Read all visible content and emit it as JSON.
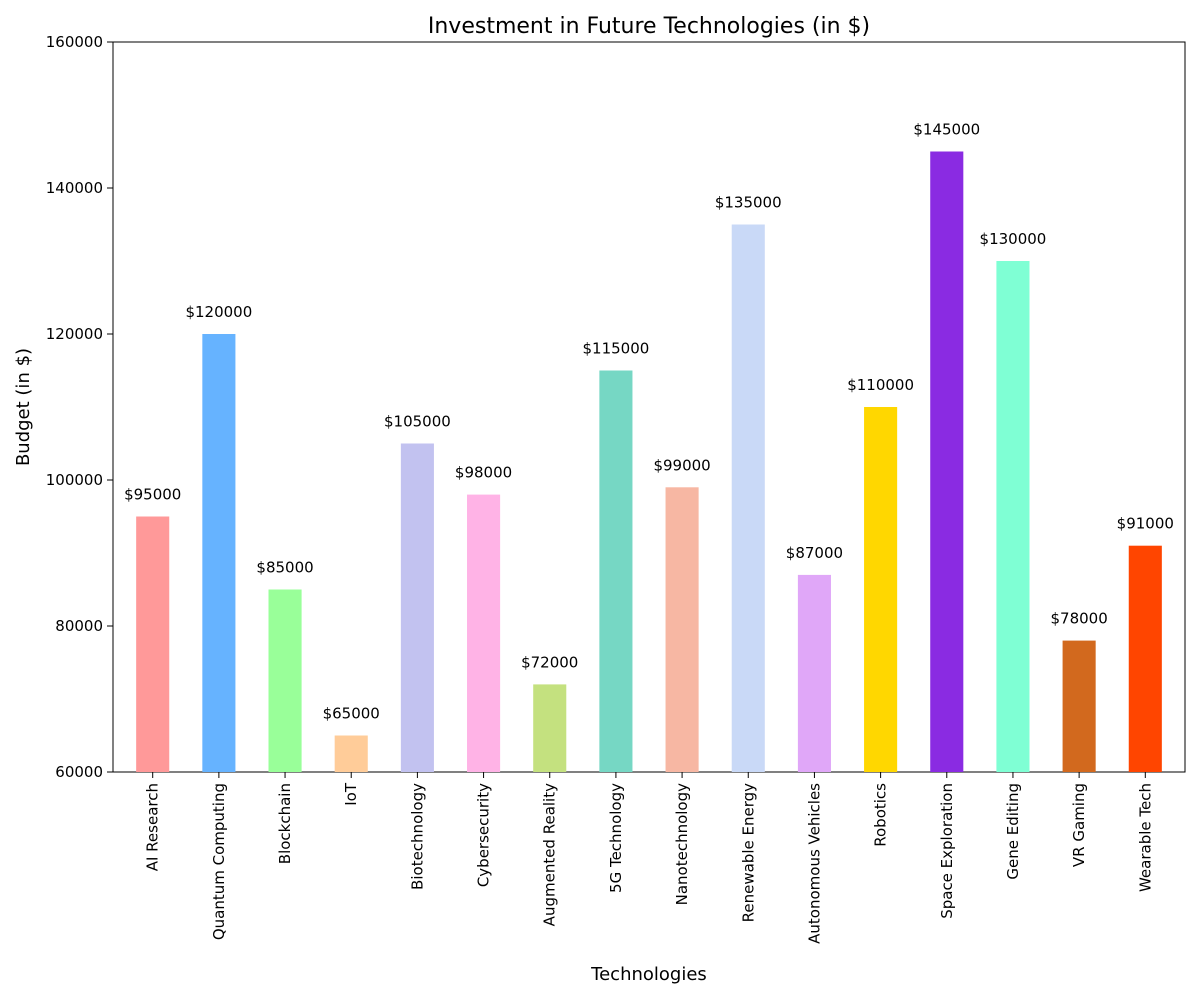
{
  "chart_data": {
    "type": "bar",
    "title": "Investment in Future Technologies (in $)",
    "xlabel": "Technologies",
    "ylabel": "Budget (in $)",
    "ylim": [
      60000,
      160000
    ],
    "yticks": [
      60000,
      80000,
      100000,
      120000,
      140000,
      160000
    ],
    "grid": false,
    "categories": [
      "AI Research",
      "Quantum Computing",
      "Blockchain",
      "IoT",
      "Biotechnology",
      "Cybersecurity",
      "Augmented Reality",
      "5G Technology",
      "Nanotechnology",
      "Renewable Energy",
      "Autonomous Vehicles",
      "Robotics",
      "Space Exploration",
      "Gene Editing",
      "VR Gaming",
      "Wearable Tech"
    ],
    "values": [
      95000,
      120000,
      85000,
      65000,
      105000,
      98000,
      72000,
      115000,
      99000,
      135000,
      87000,
      110000,
      145000,
      130000,
      78000,
      91000
    ],
    "value_labels": [
      "$95000",
      "$120000",
      "$85000",
      "$65000",
      "$105000",
      "$98000",
      "$72000",
      "$115000",
      "$99000",
      "$135000",
      "$87000",
      "$110000",
      "$145000",
      "$130000",
      "$78000",
      "$91000"
    ],
    "colors": [
      "#ff9999",
      "#66b3ff",
      "#99ff99",
      "#ffcc99",
      "#c2c2f0",
      "#ffb3e6",
      "#c4e17f",
      "#76d7c4",
      "#f7b7a3",
      "#c9d9f7",
      "#e0a7f8",
      "#ffd700",
      "#8a2be2",
      "#7fffd4",
      "#d2691e",
      "#ff4500"
    ]
  }
}
